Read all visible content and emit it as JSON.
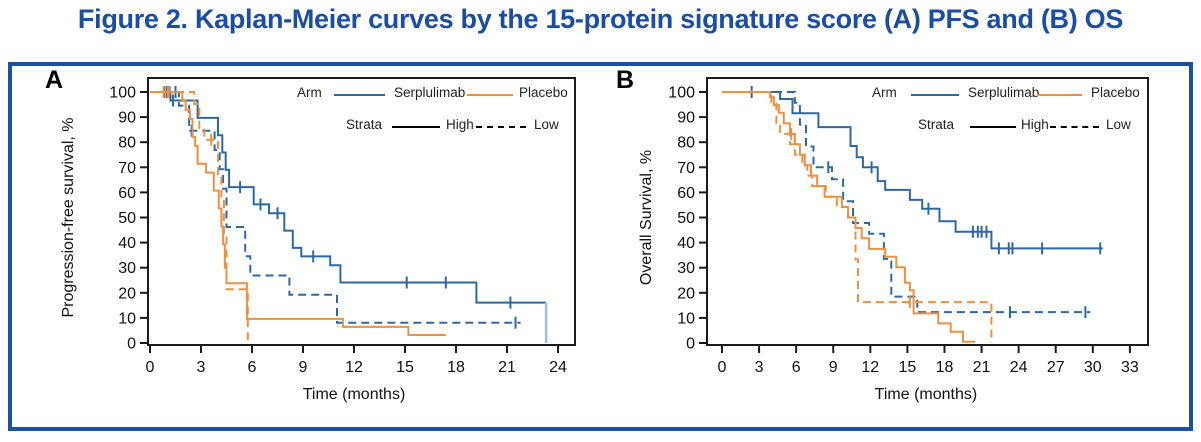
{
  "title": "Figure 2. Kaplan-Meier curves by the 15-protein signature score (A) PFS and (B) OS",
  "colors": {
    "title_blue": "#1B4DA3",
    "border_blue": "#1A52A0",
    "serplulimab": "#2E68A4",
    "serplulimab_fade": "#9DC0DE",
    "placebo": "#EA9143",
    "strata_black": "#1a1a1a",
    "axis": "#1a1a1a"
  },
  "legend": {
    "arm": "Arm",
    "serplulimab": "Serplulimab",
    "placebo": "Placebo",
    "strata": "Strata",
    "high": "High",
    "low": "Low"
  },
  "chart_data": {
    "type": "line",
    "subtype": "kaplan_meier_step",
    "grid": false,
    "legend_position": "top-right-inside",
    "panels": [
      {
        "id": "A",
        "panel_letter": "A",
        "ylabel": "Progression-free survival, %",
        "xlabel": "Time (months)",
        "xlim": [
          0,
          24
        ],
        "ylim": [
          0,
          100
        ],
        "xticks": [
          0,
          3,
          6,
          9,
          12,
          15,
          18,
          21,
          24
        ],
        "yticks": [
          0,
          10,
          20,
          30,
          40,
          50,
          60,
          70,
          80,
          90,
          100
        ],
        "series": [
          {
            "name": "Serplulimab High",
            "arm": "Serplulimab",
            "strata": "High",
            "color": "#2E68A4",
            "dash": "solid",
            "fade_final_drop": true,
            "points": [
              [
                0,
                100
              ],
              [
                1.2,
                96.6
              ],
              [
                2.8,
                89.7
              ],
              [
                4.0,
                82.8
              ],
              [
                4.25,
                75.9
              ],
              [
                4.45,
                69.0
              ],
              [
                4.65,
                62.1
              ],
              [
                6.1,
                55.2
              ],
              [
                7.0,
                51.7
              ],
              [
                7.9,
                44.8
              ],
              [
                8.4,
                37.9
              ],
              [
                8.9,
                34.5
              ],
              [
                10.6,
                31.0
              ],
              [
                11.2,
                24.1
              ],
              [
                19.2,
                16.1
              ],
              [
                23.3,
                0
              ]
            ],
            "end": 23.3,
            "censors": [
              [
                0.85,
                100
              ],
              [
                1.0,
                100
              ],
              [
                1.15,
                100
              ],
              [
                1.35,
                96.6
              ],
              [
                5.3,
                62.1
              ],
              [
                6.5,
                55.2
              ],
              [
                7.5,
                51.7
              ],
              [
                9.6,
                34.5
              ],
              [
                15.1,
                24.1
              ],
              [
                17.4,
                24.1
              ],
              [
                21.2,
                16.1
              ]
            ]
          },
          {
            "name": "Serplulimab Low",
            "arm": "Serplulimab",
            "strata": "Low",
            "color": "#2E68A4",
            "dash": "dashed",
            "points": [
              [
                0,
                100
              ],
              [
                1.7,
                94.6
              ],
              [
                2.3,
                84.6
              ],
              [
                3.8,
                76.9
              ],
              [
                4.1,
                69.2
              ],
              [
                4.3,
                61.5
              ],
              [
                4.5,
                46.2
              ],
              [
                5.6,
                34.6
              ],
              [
                5.9,
                26.9
              ],
              [
                8.2,
                19.2
              ],
              [
                11.0,
                8.1
              ]
            ],
            "end": 21.8,
            "censors": [
              [
                1.5,
                100
              ],
              [
                2.45,
                84.6
              ],
              [
                21.5,
                8.1
              ]
            ]
          },
          {
            "name": "Placebo High",
            "arm": "Placebo",
            "strata": "High",
            "color": "#EA9143",
            "dash": "solid",
            "points": [
              [
                0,
                100
              ],
              [
                1.9,
                96.4
              ],
              [
                2.1,
                92.9
              ],
              [
                2.35,
                89.3
              ],
              [
                2.5,
                82.1
              ],
              [
                2.65,
                78.6
              ],
              [
                2.8,
                71.4
              ],
              [
                3.3,
                67.9
              ],
              [
                3.75,
                60.7
              ],
              [
                4.05,
                53.6
              ],
              [
                4.2,
                46.4
              ],
              [
                4.3,
                39.3
              ],
              [
                4.4,
                30.0
              ],
              [
                4.5,
                23.8
              ],
              [
                5.7,
                9.6
              ],
              [
                11.35,
                6.4
              ],
              [
                15.2,
                3.2
              ]
            ],
            "end": 17.4,
            "censors": [
              [
                0.8,
                100
              ],
              [
                1.05,
                100
              ]
            ]
          },
          {
            "name": "Placebo Low",
            "arm": "Placebo",
            "strata": "Low",
            "color": "#EA9143",
            "dash": "dashed",
            "points": [
              [
                0,
                100
              ],
              [
                2.6,
                95.2
              ],
              [
                2.9,
                85.7
              ],
              [
                3.2,
                81.0
              ],
              [
                4.0,
                66.7
              ],
              [
                4.2,
                57.1
              ],
              [
                4.35,
                42.9
              ],
              [
                4.5,
                21.4
              ],
              [
                5.75,
                0
              ]
            ],
            "end": 5.75,
            "censors": [
              [
                1.1,
                100
              ],
              [
                3.6,
                81.0
              ]
            ]
          }
        ]
      },
      {
        "id": "B",
        "panel_letter": "B",
        "ylabel": "Overall Survival, %",
        "xlabel": "Time (months)",
        "xlim": [
          0,
          33
        ],
        "ylim": [
          0,
          100
        ],
        "xticks": [
          0,
          3,
          6,
          9,
          12,
          15,
          18,
          21,
          24,
          27,
          30,
          33
        ],
        "yticks": [
          0,
          10,
          20,
          30,
          40,
          50,
          60,
          70,
          80,
          90,
          100
        ],
        "series": [
          {
            "name": "Serplulimab High",
            "arm": "Serplulimab",
            "strata": "High",
            "color": "#2E68A4",
            "dash": "solid",
            "points": [
              [
                0,
                100
              ],
              [
                4.7,
                97.2
              ],
              [
                5.7,
                91.5
              ],
              [
                7.8,
                86.0
              ],
              [
                10.4,
                78.5
              ],
              [
                10.9,
                74.0
              ],
              [
                11.4,
                70.0
              ],
              [
                12.6,
                64.5
              ],
              [
                13.2,
                61.0
              ],
              [
                15.2,
                57.0
              ],
              [
                16.2,
                53.5
              ],
              [
                17.6,
                48.5
              ],
              [
                18.9,
                44.3
              ],
              [
                21.8,
                37.7
              ]
            ],
            "end": 30.8,
            "censors": [
              [
                2.4,
                100
              ],
              [
                12.1,
                70.0
              ],
              [
                16.7,
                53.5
              ],
              [
                20.3,
                44.3
              ],
              [
                20.7,
                44.3
              ],
              [
                21.0,
                44.3
              ],
              [
                21.4,
                44.3
              ],
              [
                22.4,
                37.7
              ],
              [
                23.2,
                37.7
              ],
              [
                23.5,
                37.7
              ],
              [
                25.9,
                37.7
              ],
              [
                30.6,
                37.7
              ]
            ]
          },
          {
            "name": "Serplulimab Low",
            "arm": "Serplulimab",
            "strata": "Low",
            "color": "#2E68A4",
            "dash": "dashed",
            "points": [
              [
                0,
                100
              ],
              [
                5.9,
                95.7
              ],
              [
                6.3,
                87.0
              ],
              [
                6.8,
                78.3
              ],
              [
                7.4,
                70.0
              ],
              [
                8.9,
                65.2
              ],
              [
                9.8,
                56.5
              ],
              [
                10.6,
                47.8
              ],
              [
                11.9,
                43.5
              ],
              [
                13.1,
                33.5
              ],
              [
                13.7,
                18.5
              ],
              [
                15.8,
                12.3
              ]
            ],
            "end": 29.8,
            "censors": [
              [
                8.6,
                70.0
              ],
              [
                23.3,
                12.3
              ],
              [
                29.4,
                12.3
              ]
            ]
          },
          {
            "name": "Placebo High",
            "arm": "Placebo",
            "strata": "High",
            "color": "#EA9143",
            "dash": "solid",
            "points": [
              [
                0,
                100
              ],
              [
                3.9,
                97.9
              ],
              [
                4.2,
                94.8
              ],
              [
                4.6,
                91.7
              ],
              [
                5.0,
                87.5
              ],
              [
                5.5,
                83.3
              ],
              [
                5.9,
                79.2
              ],
              [
                6.3,
                75.0
              ],
              [
                6.7,
                70.8
              ],
              [
                7.2,
                66.7
              ],
              [
                7.7,
                62.5
              ],
              [
                8.3,
                58.3
              ],
              [
                9.7,
                54.2
              ],
              [
                10.2,
                50.0
              ],
              [
                10.8,
                45.8
              ],
              [
                11.3,
                41.7
              ],
              [
                11.9,
                37.5
              ],
              [
                13.2,
                34.4
              ],
              [
                14.1,
                30.2
              ],
              [
                14.8,
                24.0
              ],
              [
                15.2,
                21.0
              ],
              [
                15.5,
                11.8
              ],
              [
                17.5,
                7.8
              ],
              [
                18.5,
                4.5
              ],
              [
                19.5,
                0.5
              ]
            ],
            "end": 20.5,
            "censors": [
              [
                5.6,
                83.3
              ]
            ]
          },
          {
            "name": "Placebo Low",
            "arm": "Placebo",
            "strata": "Low",
            "color": "#EA9143",
            "dash": "dashed",
            "points": [
              [
                0,
                100
              ],
              [
                4.0,
                95.8
              ],
              [
                4.4,
                87.5
              ],
              [
                4.7,
                83.3
              ],
              [
                5.5,
                79.2
              ],
              [
                5.9,
                75.0
              ],
              [
                6.5,
                70.8
              ],
              [
                6.9,
                66.7
              ],
              [
                7.3,
                62.5
              ],
              [
                8.4,
                58.3
              ],
              [
                9.3,
                54.2
              ],
              [
                10.2,
                50.0
              ],
              [
                10.8,
                33.3
              ],
              [
                11.0,
                16.3
              ],
              [
                21.8,
                0
              ]
            ],
            "end": 21.8,
            "censors": [
              [
                15.2,
                16.3
              ]
            ]
          }
        ]
      }
    ]
  }
}
